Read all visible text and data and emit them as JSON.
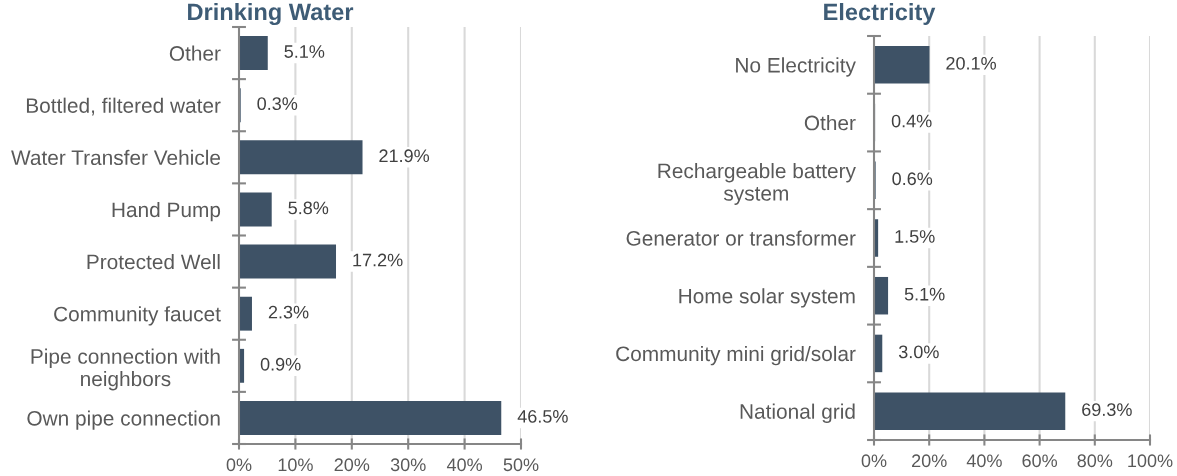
{
  "chart_data": [
    {
      "type": "bar",
      "orientation": "horizontal",
      "title": "Drinking Water",
      "categories": [
        "Other",
        "Bottled, filtered water",
        "Water Transfer Vehicle",
        "Hand Pump",
        "Protected Well",
        "Community faucet",
        "Pipe connection with\nneighbors",
        "Own pipe connection"
      ],
      "values": [
        5.1,
        0.3,
        21.9,
        5.8,
        17.2,
        2.3,
        0.9,
        46.5
      ],
      "value_labels": [
        "5.1%",
        "0.3%",
        "21.9%",
        "5.8%",
        "17.2%",
        "2.3%",
        "0.9%",
        "46.5%"
      ],
      "color": "#3e5266",
      "xlim": [
        0,
        50
      ],
      "xticks": [
        {
          "value": 0,
          "label": "0%"
        },
        {
          "value": 10,
          "label": "10%"
        },
        {
          "value": 20,
          "label": "20%"
        },
        {
          "value": 30,
          "label": "30%"
        },
        {
          "value": 40,
          "label": "40%"
        },
        {
          "value": 50,
          "label": "50%"
        }
      ],
      "grid": "x"
    },
    {
      "type": "bar",
      "orientation": "horizontal",
      "title": "Electricity",
      "categories": [
        "No Electricity",
        "Other",
        "Rechargeable battery\nsystem",
        "Generator or transformer",
        "Home solar system",
        "Community mini grid/solar",
        "National grid"
      ],
      "values": [
        20.1,
        0.4,
        0.6,
        1.5,
        5.1,
        3.0,
        69.3
      ],
      "value_labels": [
        "20.1%",
        "0.4%",
        "0.6%",
        "1.5%",
        "5.1%",
        "3.0%",
        "69.3%"
      ],
      "color": "#3e5266",
      "xlim": [
        0,
        100
      ],
      "xticks": [
        {
          "value": 0,
          "label": "0%"
        },
        {
          "value": 20,
          "label": "20%"
        },
        {
          "value": 40,
          "label": "40%"
        },
        {
          "value": 60,
          "label": "60%"
        },
        {
          "value": 80,
          "label": "80%"
        },
        {
          "value": 100,
          "label": "100%"
        }
      ],
      "grid": "x"
    }
  ]
}
